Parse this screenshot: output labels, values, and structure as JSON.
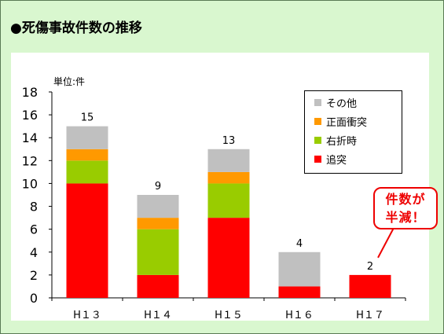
{
  "title": "●死傷事故件数の推移",
  "unit_label": "単位:件",
  "callout": {
    "line1": "件数が",
    "line2": "半減！"
  },
  "colors": {
    "frame_bg": "#d9f7cf",
    "plot_bg": "#ffffff",
    "callout": "#ee0000"
  },
  "chart_data": {
    "type": "bar",
    "stacked": true,
    "categories": [
      "H13",
      "H14",
      "H15",
      "H16",
      "H17"
    ],
    "category_labels": [
      "H１３",
      "H１４",
      "H１５",
      "H１６",
      "H１７"
    ],
    "series": [
      {
        "name": "追突",
        "color": "#ff0000",
        "values": [
          10,
          2,
          7,
          1,
          2
        ]
      },
      {
        "name": "右折時",
        "color": "#99cc00",
        "values": [
          2,
          4,
          3,
          0,
          0
        ]
      },
      {
        "name": "正面衝突",
        "color": "#ff9900",
        "values": [
          1,
          1,
          1,
          0,
          0
        ]
      },
      {
        "name": "その他",
        "color": "#c0c0c0",
        "values": [
          2,
          2,
          2,
          3,
          0
        ]
      }
    ],
    "totals": [
      15,
      9,
      13,
      4,
      2
    ],
    "total_labels": [
      "15",
      "9",
      "13",
      "4",
      "2"
    ],
    "legend_order": [
      "その他",
      "正面衝突",
      "右折時",
      "追突"
    ],
    "ylim": [
      0,
      18
    ],
    "yticks": [
      0,
      2,
      4,
      6,
      8,
      10,
      12,
      14,
      16,
      18
    ],
    "grid": false,
    "legend_position": "top-right"
  }
}
